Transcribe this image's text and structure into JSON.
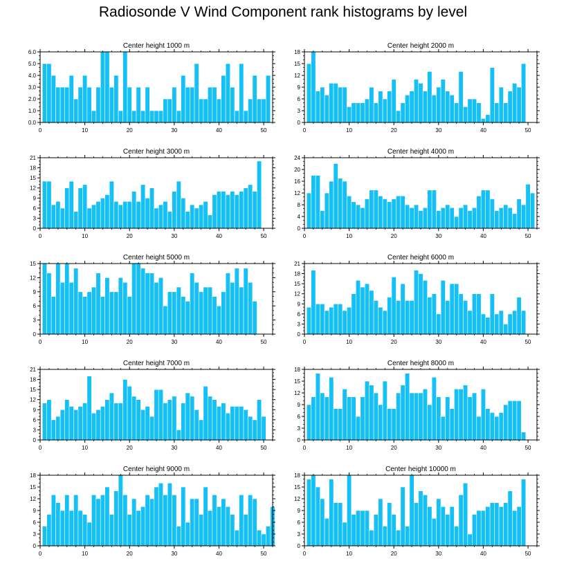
{
  "title": "Radiosonde V Wind Component rank histograms by level",
  "colors": {
    "bar": "#14c0f5",
    "bar_edge": "#ffffff",
    "axis": "#000000"
  },
  "chart_data": [
    {
      "type": "bar",
      "title": "Center height 1000 m",
      "xlim": [
        0,
        52
      ],
      "ylim": [
        0,
        6
      ],
      "yticks": [
        "0.0",
        "1.0",
        "2.0",
        "3.0",
        "4.0",
        "5.0",
        "6.0"
      ],
      "ytick_values": [
        0,
        1,
        2,
        3,
        4,
        5,
        6
      ],
      "xticks": [
        0,
        10,
        20,
        30,
        40,
        50
      ],
      "values": [
        5,
        5,
        4,
        3,
        3,
        3,
        4,
        2,
        3,
        4,
        3,
        1,
        3,
        6,
        6,
        3,
        4,
        1,
        6,
        3,
        1,
        3,
        1,
        3,
        1,
        1,
        1,
        2,
        2,
        3,
        1,
        4,
        3,
        3,
        5,
        2,
        2,
        3,
        3,
        2,
        4,
        5,
        3,
        1,
        5,
        1,
        2,
        4,
        2,
        2,
        4
      ]
    },
    {
      "type": "bar",
      "title": "Center height 2000 m",
      "xlim": [
        0,
        52
      ],
      "ylim": [
        0,
        18
      ],
      "yticks": [
        "0",
        "3",
        "6",
        "9",
        "12",
        "15",
        "18"
      ],
      "ytick_values": [
        0,
        3,
        6,
        9,
        12,
        15,
        18
      ],
      "xticks": [
        0,
        10,
        20,
        30,
        40,
        50
      ],
      "values": [
        15,
        18,
        8,
        9,
        7,
        10,
        10,
        9,
        9,
        4,
        5,
        5,
        5,
        6,
        9,
        5,
        8,
        6,
        8,
        11,
        3,
        5,
        7,
        8,
        11,
        10,
        8,
        13,
        7,
        9,
        11,
        8,
        7,
        5,
        13,
        4,
        6,
        6,
        5,
        1,
        2,
        14,
        5,
        9,
        5,
        8,
        10,
        9,
        15
      ]
    },
    {
      "type": "bar",
      "title": "Center height 3000 m",
      "xlim": [
        0,
        52
      ],
      "ylim": [
        0,
        21
      ],
      "yticks": [
        "0",
        "3",
        "6",
        "9",
        "12",
        "15",
        "18",
        "21"
      ],
      "ytick_values": [
        0,
        3,
        6,
        9,
        12,
        15,
        18,
        21
      ],
      "xticks": [
        0,
        10,
        20,
        30,
        40,
        50
      ],
      "values": [
        14,
        14,
        7,
        8,
        6,
        12,
        14,
        5,
        12,
        13,
        6,
        7,
        8,
        9,
        10,
        14,
        8,
        7,
        8,
        8,
        11,
        8,
        13,
        9,
        12,
        6,
        7,
        8,
        5,
        11,
        14,
        9,
        5,
        7,
        6,
        7,
        8,
        4,
        10,
        11,
        11,
        10,
        11,
        10,
        11,
        12,
        13,
        11,
        20
      ]
    },
    {
      "type": "bar",
      "title": "Center height 4000 m",
      "xlim": [
        0,
        52
      ],
      "ylim": [
        0,
        24
      ],
      "yticks": [
        "0",
        "4",
        "8",
        "12",
        "16",
        "20",
        "24"
      ],
      "ytick_values": [
        0,
        4,
        8,
        12,
        16,
        20,
        24
      ],
      "xticks": [
        0,
        10,
        20,
        30,
        40,
        50
      ],
      "values": [
        12,
        18,
        18,
        6,
        12,
        16,
        22,
        17,
        16,
        11,
        9,
        8,
        7,
        10,
        13,
        13,
        11,
        10,
        9,
        10,
        11,
        11,
        8,
        7,
        8,
        6,
        7,
        13,
        13,
        6,
        7,
        8,
        7,
        4,
        7,
        8,
        6,
        7,
        11,
        13,
        13,
        10,
        6,
        7,
        8,
        7,
        5,
        10,
        8,
        15,
        12
      ]
    },
    {
      "type": "bar",
      "title": "Center height 5000 m",
      "xlim": [
        0,
        52
      ],
      "ylim": [
        0,
        15
      ],
      "yticks": [
        "0",
        "3",
        "6",
        "9",
        "12",
        "15"
      ],
      "ytick_values": [
        0,
        3,
        6,
        9,
        12,
        15
      ],
      "xticks": [
        0,
        10,
        20,
        30,
        40,
        50
      ],
      "values": [
        15,
        13,
        8,
        15,
        11,
        15,
        11,
        14,
        9,
        8,
        9,
        10,
        13,
        8,
        12,
        9,
        9,
        12,
        11,
        8,
        15,
        15,
        14,
        13,
        13,
        11,
        12,
        6,
        9,
        9,
        10,
        8,
        7,
        13,
        11,
        9,
        10,
        10,
        8,
        6,
        9,
        13,
        11,
        14,
        10,
        14,
        11,
        7
      ]
    },
    {
      "type": "bar",
      "title": "Center height 6000 m",
      "xlim": [
        0,
        52
      ],
      "ylim": [
        0,
        21
      ],
      "yticks": [
        "0",
        "3",
        "6",
        "9",
        "12",
        "15",
        "18",
        "21"
      ],
      "ytick_values": [
        0,
        3,
        6,
        9,
        12,
        15,
        18,
        21
      ],
      "xticks": [
        0,
        10,
        20,
        30,
        40,
        50
      ],
      "values": [
        8,
        19,
        9,
        9,
        7,
        8,
        9,
        9,
        7,
        8,
        12,
        16,
        14,
        15,
        13,
        10,
        8,
        7,
        11,
        17,
        10,
        15,
        10,
        10,
        19,
        18,
        16,
        11,
        12,
        6,
        16,
        10,
        15,
        15,
        12,
        10,
        7,
        12,
        12,
        6,
        5,
        12,
        6,
        7,
        3,
        6,
        7,
        11,
        7
      ]
    },
    {
      "type": "bar",
      "title": "Center height 7000 m",
      "xlim": [
        0,
        52
      ],
      "ylim": [
        0,
        21
      ],
      "yticks": [
        "0",
        "3",
        "6",
        "9",
        "12",
        "15",
        "18",
        "21"
      ],
      "ytick_values": [
        0,
        3,
        6,
        9,
        12,
        15,
        18,
        21
      ],
      "xticks": [
        0,
        10,
        20,
        30,
        40,
        50
      ],
      "values": [
        11,
        12,
        6,
        7,
        9,
        12,
        10,
        9,
        10,
        11,
        19,
        8,
        9,
        10,
        12,
        14,
        11,
        11,
        18,
        16,
        13,
        12,
        9,
        10,
        7,
        15,
        15,
        11,
        12,
        13,
        3,
        11,
        14,
        13,
        9,
        6,
        16,
        13,
        12,
        10,
        11,
        8,
        10,
        10,
        10,
        9,
        7,
        6,
        12,
        7
      ]
    },
    {
      "type": "bar",
      "title": "Center height 8000 m",
      "xlim": [
        0,
        52
      ],
      "ylim": [
        0,
        18
      ],
      "yticks": [
        "0",
        "3",
        "6",
        "9",
        "12",
        "15",
        "18"
      ],
      "ytick_values": [
        0,
        3,
        6,
        9,
        12,
        15,
        18
      ],
      "xticks": [
        0,
        10,
        20,
        30,
        40,
        50
      ],
      "values": [
        9,
        11,
        17,
        12,
        11,
        16,
        8,
        8,
        13,
        11,
        11,
        6,
        11,
        15,
        14,
        12,
        9,
        15,
        8,
        8,
        12,
        14,
        17,
        12,
        12,
        12,
        13,
        9,
        16,
        11,
        6,
        11,
        8,
        13,
        13,
        14,
        11,
        12,
        6,
        13,
        8,
        7,
        6,
        7,
        9,
        10,
        10,
        10,
        2
      ]
    },
    {
      "type": "bar",
      "title": "Center height 9000 m",
      "xlim": [
        0,
        52
      ],
      "ylim": [
        0,
        18
      ],
      "yticks": [
        "0",
        "3",
        "6",
        "9",
        "12",
        "15",
        "18"
      ],
      "ytick_values": [
        0,
        3,
        6,
        9,
        12,
        15,
        18
      ],
      "xticks": [
        0,
        10,
        20,
        30,
        40,
        50
      ],
      "values": [
        5,
        8,
        13,
        11,
        9,
        13,
        9,
        13,
        9,
        8,
        6,
        13,
        12,
        13,
        15,
        8,
        14,
        18,
        13,
        8,
        12,
        9,
        10,
        13,
        12,
        15,
        16,
        13,
        16,
        13,
        5,
        15,
        6,
        12,
        12,
        8,
        15,
        9,
        13,
        10,
        12,
        10,
        8,
        4,
        13,
        8,
        13,
        12,
        4,
        3,
        5,
        10
      ]
    },
    {
      "type": "bar",
      "title": "Center height 10000 m",
      "xlim": [
        0,
        52
      ],
      "ylim": [
        0,
        18
      ],
      "yticks": [
        "0",
        "3",
        "6",
        "9",
        "12",
        "15",
        "18"
      ],
      "ytick_values": [
        0,
        3,
        6,
        9,
        12,
        15,
        18
      ],
      "xticks": [
        0,
        10,
        20,
        30,
        40,
        50
      ],
      "values": [
        17,
        18,
        15,
        12,
        7,
        17,
        11,
        11,
        6,
        18,
        8,
        9,
        9,
        9,
        4,
        8,
        12,
        5,
        11,
        8,
        4,
        15,
        5,
        18,
        11,
        14,
        13,
        10,
        7,
        12,
        10,
        8,
        10,
        5,
        13,
        16,
        3,
        8,
        9,
        9,
        10,
        11,
        11,
        10,
        11,
        14,
        9,
        10,
        17
      ]
    }
  ]
}
